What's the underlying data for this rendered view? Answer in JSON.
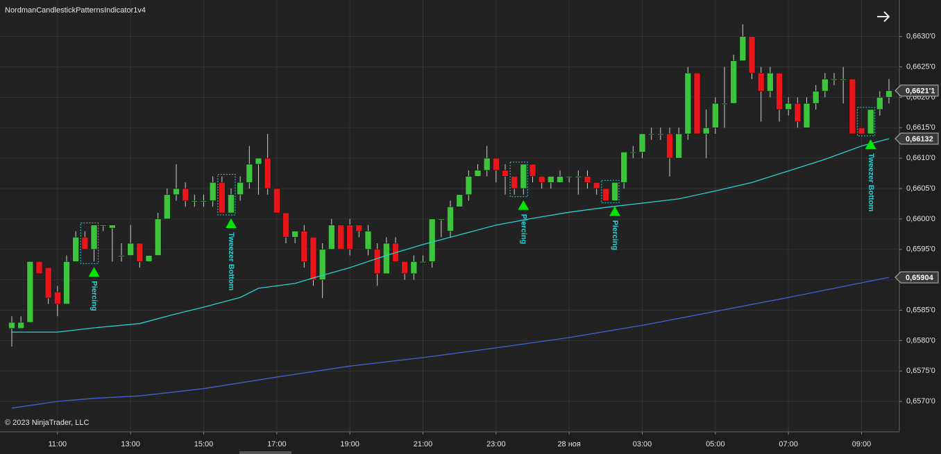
{
  "chart_data": {
    "type": "candlestick",
    "title": "NordmanCandlestickPatternsIndicator1v4",
    "copyright": "© 2023 NinjaTrader, LLC",
    "categories": [
      null,
      null,
      null,
      null,
      null,
      "11:00",
      null,
      null,
      null,
      null,
      null,
      null,
      null,
      "13:00",
      null,
      null,
      null,
      null,
      null,
      null,
      null,
      "15:00",
      null,
      null,
      null,
      null,
      null,
      null,
      null,
      "17:00",
      null,
      null,
      null,
      null,
      null,
      null,
      null,
      "19:00",
      null,
      null,
      null,
      null,
      null,
      null,
      null,
      "21:00",
      null,
      null,
      null,
      null,
      null,
      null,
      null,
      "23:00",
      null,
      null,
      null,
      null,
      null,
      null,
      null,
      "28 ноя",
      null,
      null,
      null,
      null,
      null,
      null,
      null,
      "03:00",
      null,
      null,
      null,
      null,
      null,
      null,
      null,
      "05:00",
      null,
      null,
      null,
      null,
      null,
      null,
      null,
      "07:00",
      null,
      null,
      null,
      null,
      null,
      null,
      null,
      "09:00",
      null,
      null,
      null
    ],
    "up_color": "#3cc43c",
    "down_color": "#e8151b",
    "open": [
      0.6582,
      0.6582,
      0.6583,
      0.6593,
      0.6592,
      0.6588,
      0.6586,
      0.6593,
      0.6597,
      0.6595,
      0.6599,
      0.65985,
      0.6594,
      0.6594,
      0.6596,
      0.6593,
      0.6594,
      0.66,
      0.6604,
      0.6605,
      0.6603,
      0.6603,
      0.6603,
      0.6606,
      0.6601,
      0.6604,
      0.6606,
      0.6609,
      0.661,
      0.6605,
      0.6601,
      0.6597,
      0.6598,
      0.6597,
      0.659,
      0.6595,
      0.6599,
      0.6599,
      0.6599,
      0.6595,
      0.6595,
      0.6591,
      0.6596,
      0.6593,
      0.6591,
      0.6593,
      0.6593,
      0.66,
      0.6598,
      0.6602,
      0.6604,
      0.6607,
      0.6608,
      0.661,
      0.6608,
      0.6607,
      0.6605,
      0.6609,
      0.6607,
      0.6606,
      0.6606,
      0.6607,
      0.6607,
      0.6607,
      0.6606,
      0.6605,
      0.6603,
      0.6606,
      0.6611,
      0.6611,
      0.6614,
      0.6614,
      0.6614,
      0.661,
      0.6614,
      0.6624,
      0.6614,
      0.6615,
      0.6619,
      0.6619,
      0.6626,
      0.663,
      0.6624,
      0.6621,
      0.6624,
      0.6618,
      0.6619,
      0.6615,
      0.6619,
      0.6621,
      0.6623,
      0.6623,
      0.6623,
      0.6615,
      0.6614,
      0.6618,
      0.662
    ],
    "high": [
      0.6584,
      0.6584,
      0.6593,
      0.6593,
      0.6592,
      0.6589,
      0.6594,
      0.6598,
      0.6598,
      0.6599,
      0.6599,
      0.6599,
      0.6596,
      0.6599,
      0.6596,
      0.6594,
      0.6601,
      0.6605,
      0.6609,
      0.6606,
      0.6604,
      0.6604,
      0.6607,
      0.6607,
      0.6605,
      0.6607,
      0.6612,
      0.661,
      0.6614,
      0.6605,
      0.6601,
      0.6598,
      0.6599,
      0.6597,
      0.6596,
      0.66,
      0.6599,
      0.66,
      0.6599,
      0.6599,
      0.6596,
      0.6597,
      0.6597,
      0.6593,
      0.6594,
      0.6594,
      0.66,
      0.66,
      0.6603,
      0.6604,
      0.6608,
      0.6609,
      0.6612,
      0.661,
      0.6609,
      0.6607,
      0.6609,
      0.6609,
      0.6607,
      0.6607,
      0.6608,
      0.6607,
      0.6608,
      0.6608,
      0.6606,
      0.6605,
      0.6606,
      0.6611,
      0.6612,
      0.6614,
      0.6615,
      0.6615,
      0.6615,
      0.6615,
      0.6625,
      0.6624,
      0.6618,
      0.662,
      0.6625,
      0.6627,
      0.6632,
      0.663,
      0.6625,
      0.6625,
      0.6624,
      0.662,
      0.662,
      0.662,
      0.6622,
      0.6624,
      0.6624,
      0.6625,
      0.6623,
      0.6615,
      0.6618,
      0.6621,
      0.6623
    ],
    "low": [
      0.6579,
      0.6582,
      0.6583,
      0.6591,
      0.6586,
      0.6584,
      0.6586,
      0.6593,
      0.6595,
      0.6593,
      0.6598,
      0.6593,
      0.6593,
      0.6594,
      0.6592,
      0.6593,
      0.6594,
      0.66,
      0.6603,
      0.6602,
      0.6602,
      0.6602,
      0.6602,
      0.6601,
      0.6601,
      0.6603,
      0.6605,
      0.6604,
      0.6604,
      0.6601,
      0.6596,
      0.6596,
      0.6592,
      0.6589,
      0.6587,
      0.6595,
      0.6595,
      0.6594,
      0.6597,
      0.6594,
      0.6589,
      0.6591,
      0.6593,
      0.659,
      0.659,
      0.6593,
      0.6592,
      0.6597,
      0.6597,
      0.6602,
      0.6603,
      0.6607,
      0.6607,
      0.6606,
      0.6604,
      0.6604,
      0.6604,
      0.6606,
      0.6605,
      0.6605,
      0.6606,
      0.6606,
      0.6604,
      0.6605,
      0.6604,
      0.6603,
      0.6603,
      0.6605,
      0.661,
      0.661,
      0.6613,
      0.6613,
      0.6607,
      0.661,
      0.6613,
      0.6614,
      0.661,
      0.6614,
      0.6615,
      0.6619,
      0.6626,
      0.6623,
      0.6616,
      0.662,
      0.6616,
      0.6617,
      0.6615,
      0.6615,
      0.6618,
      0.662,
      0.6622,
      0.6619,
      0.6614,
      0.6614,
      0.6614,
      0.6617,
      0.6619
    ],
    "close": [
      0.6583,
      0.6583,
      0.6593,
      0.6591,
      0.6587,
      0.6586,
      0.6593,
      0.6597,
      0.6595,
      0.6599,
      0.6599,
      0.6599,
      0.6594,
      0.6596,
      0.6593,
      0.6594,
      0.66,
      0.6604,
      0.6605,
      0.6603,
      0.6603,
      0.6603,
      0.6606,
      0.6601,
      0.6604,
      0.6606,
      0.6609,
      0.661,
      0.6605,
      0.6601,
      0.6597,
      0.6598,
      0.6593,
      0.659,
      0.6595,
      0.6599,
      0.6595,
      0.6595,
      0.6598,
      0.6598,
      0.6591,
      0.6596,
      0.6593,
      0.6591,
      0.6593,
      0.6593,
      0.66,
      0.66,
      0.6602,
      0.6604,
      0.6607,
      0.6608,
      0.661,
      0.6608,
      0.6607,
      0.6605,
      0.6609,
      0.6607,
      0.6606,
      0.6607,
      0.6607,
      0.6607,
      0.6607,
      0.6606,
      0.6605,
      0.6603,
      0.6606,
      0.6611,
      0.6611,
      0.6614,
      0.6614,
      0.6614,
      0.661,
      0.6614,
      0.6624,
      0.6614,
      0.6615,
      0.6619,
      0.6619,
      0.6626,
      0.663,
      0.6624,
      0.6621,
      0.6624,
      0.6618,
      0.6619,
      0.6616,
      0.6619,
      0.6621,
      0.6623,
      0.6623,
      0.6623,
      0.6614,
      0.6614,
      0.6618,
      0.662,
      0.66211
    ],
    "series": [
      {
        "color": "#2ccfd2",
        "x": [
          0,
          5,
          9,
          14,
          18,
          21,
          25,
          27,
          31,
          33,
          37,
          41,
          45,
          49,
          53,
          57,
          61,
          65,
          69,
          73,
          77,
          81,
          85,
          89,
          93,
          96
        ],
        "values": [
          0.65814,
          0.65814,
          0.65821,
          0.65828,
          0.65844,
          0.65855,
          0.65871,
          0.65886,
          0.65894,
          0.65903,
          0.6592,
          0.6594,
          0.65958,
          0.65974,
          0.6599,
          0.66001,
          0.66011,
          0.66019,
          0.66026,
          0.66033,
          0.66046,
          0.6606,
          0.66079,
          0.66098,
          0.6612,
          0.66132
        ]
      },
      {
        "color": "#4063d6",
        "x": [
          0,
          5,
          9,
          14,
          21,
          29,
          37,
          45,
          53,
          61,
          69,
          77,
          85,
          93,
          96
        ],
        "values": [
          0.65689,
          0.657,
          0.65705,
          0.65709,
          0.65721,
          0.6574,
          0.65758,
          0.65772,
          0.65788,
          0.65805,
          0.65825,
          0.65848,
          0.65871,
          0.65895,
          0.65904
        ]
      }
    ],
    "patterns": [
      {
        "bar": 9,
        "label": "Piercing"
      },
      {
        "bar": 24,
        "label": "Tweezer Bottom"
      },
      {
        "bar": 56,
        "label": "Piercing"
      },
      {
        "bar": 66,
        "label": "Piercing"
      },
      {
        "bar": 94,
        "label": "Tweezer Bottom"
      }
    ],
    "pattern_color": "#00e600",
    "pattern_text_color": "#2ccfd2",
    "price_markers": [
      {
        "value": 0.66211,
        "label": "0,6621'1"
      },
      {
        "value": 0.66132,
        "label": "0,66132"
      },
      {
        "value": 0.65904,
        "label": "0,65904"
      }
    ],
    "ylim": [
      0.6565,
      0.6636
    ],
    "yticks": [
      {
        "value": 0.657,
        "label": "0,6570'0"
      },
      {
        "value": 0.6575,
        "label": "0,6575'0"
      },
      {
        "value": 0.658,
        "label": "0,6580'0"
      },
      {
        "value": 0.6585,
        "label": "0,6585'0"
      },
      {
        "value": 0.659,
        "label": "0,6590'0"
      },
      {
        "value": 0.6595,
        "label": "0,6595'0"
      },
      {
        "value": 0.66,
        "label": "0,6600'0"
      },
      {
        "value": 0.6605,
        "label": "0,6605'0"
      },
      {
        "value": 0.661,
        "label": "0,6610'0"
      },
      {
        "value": 0.6615,
        "label": "0,6615'0"
      },
      {
        "value": 0.662,
        "label": "0,6620'0"
      },
      {
        "value": 0.6625,
        "label": "0,6625'0"
      },
      {
        "value": 0.663,
        "label": "0,6630'0"
      }
    ],
    "grid": true
  }
}
